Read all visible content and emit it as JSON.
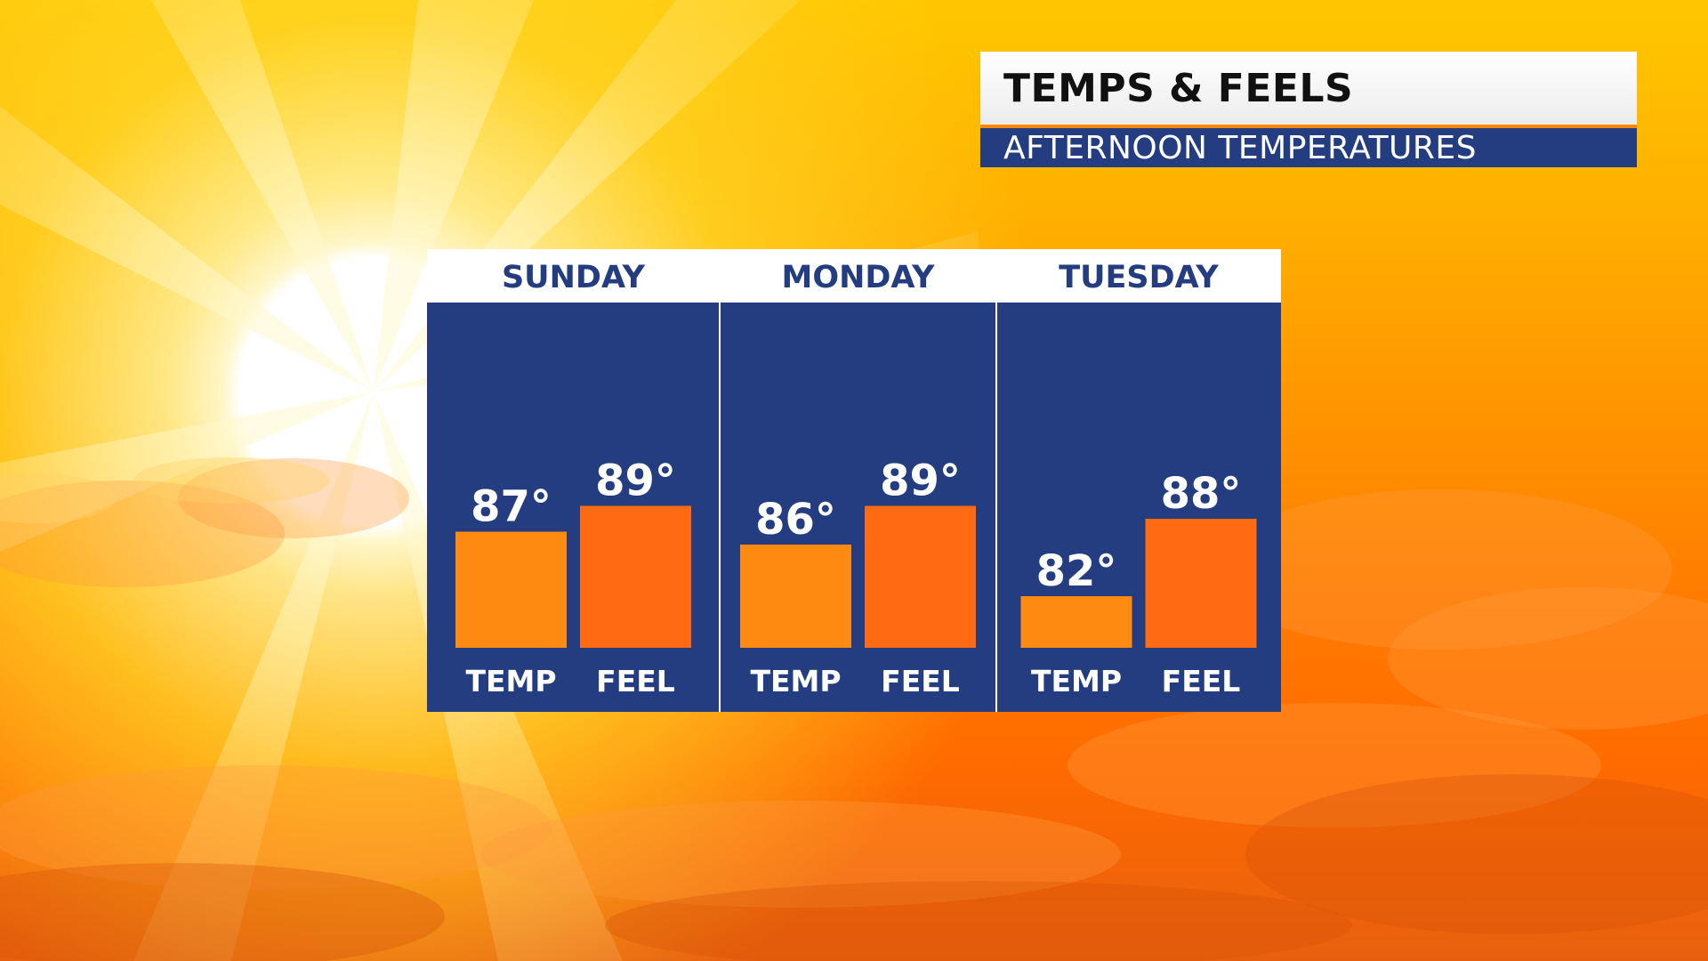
{
  "header": {
    "title": "TEMPS & FEELS",
    "subtitle": "AFTERNOON TEMPERATURES"
  },
  "colors": {
    "panel": "#233d80",
    "temp_bar": "#ff8a12",
    "feel_bar": "#ff6a12",
    "header_bg": "#ffffff",
    "accent": "#ff8a00"
  },
  "chart_data": {
    "type": "bar",
    "categories": [
      "SUNDAY",
      "MONDAY",
      "TUESDAY"
    ],
    "series": [
      {
        "name": "TEMP",
        "values": [
          87,
          86,
          82
        ],
        "labels": [
          "87°",
          "86°",
          "82°"
        ]
      },
      {
        "name": "FEEL",
        "values": [
          89,
          89,
          88
        ],
        "labels": [
          "89°",
          "89°",
          "88°"
        ]
      }
    ],
    "title": "",
    "xlabel": "",
    "ylabel": "",
    "ylim": [
      78,
      91
    ]
  }
}
